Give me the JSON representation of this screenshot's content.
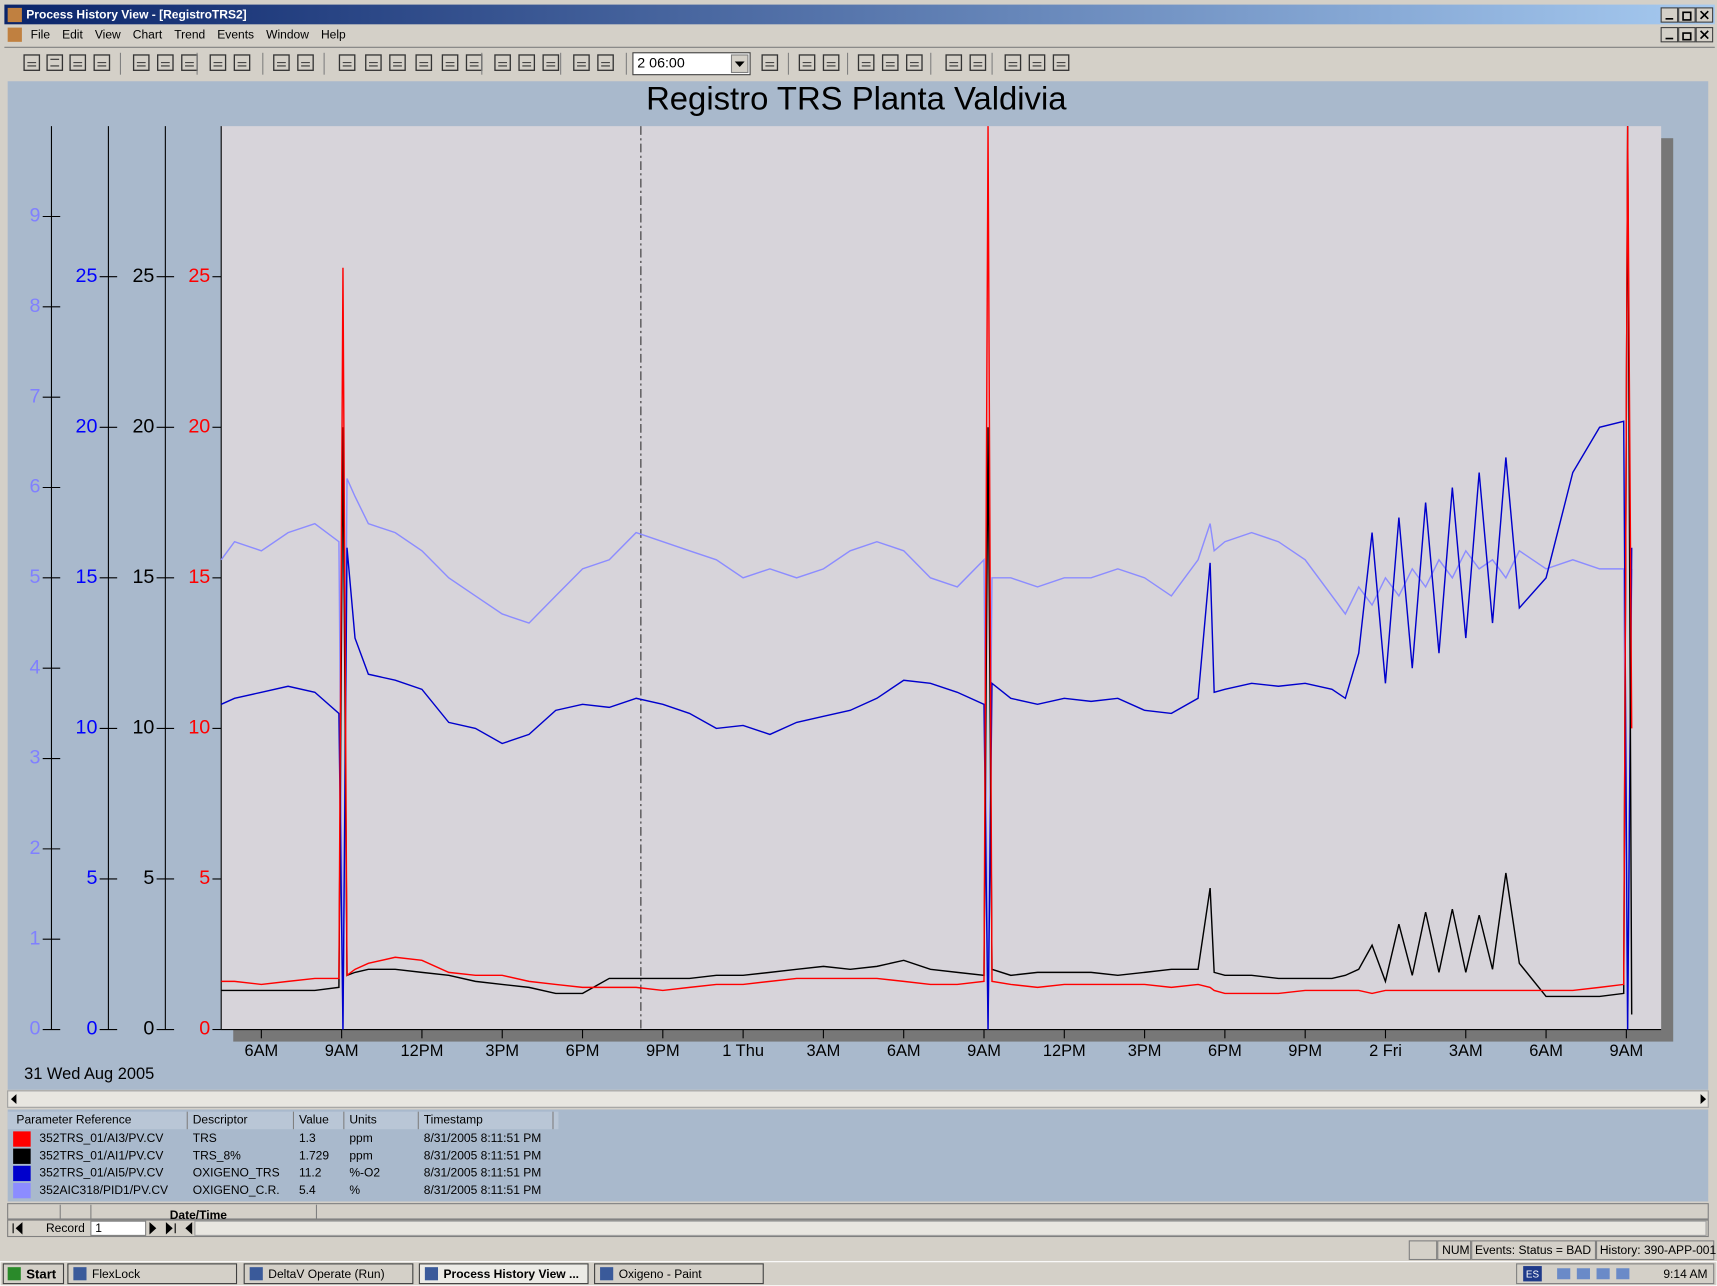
{
  "window": {
    "title": "Process History View - [RegistroTRS2]",
    "menu": [
      "File",
      "Edit",
      "View",
      "Chart",
      "Trend",
      "Events",
      "Window",
      "Help"
    ],
    "timespan": "2 06:00"
  },
  "chart_data": {
    "type": "line",
    "title": "Registro TRS Planta Valdivia",
    "date_label": "31 Wed Aug 2005",
    "x": [
      4.5,
      5,
      6,
      7,
      8,
      8.9,
      9.05,
      9.2,
      9.5,
      10,
      11,
      12,
      13,
      14,
      15,
      16,
      17,
      18,
      19,
      20,
      21,
      22,
      23,
      24,
      25,
      26,
      27,
      28,
      29,
      30,
      31,
      32,
      33,
      33.15,
      33.3,
      34,
      35,
      36,
      37,
      38,
      39,
      40,
      41,
      41.45,
      41.6,
      42,
      43,
      44,
      45,
      46,
      46.5,
      47,
      47.5,
      48,
      48.5,
      49,
      49.5,
      50,
      50.5,
      51,
      51.5,
      52,
      52.5,
      53,
      54,
      55,
      56,
      56.9,
      57.05,
      57.2
    ],
    "xlim": [
      4.5,
      58.3
    ],
    "xticks": [
      {
        "value": 6,
        "label": "6AM"
      },
      {
        "value": 9,
        "label": "9AM"
      },
      {
        "value": 12,
        "label": "12PM"
      },
      {
        "value": 15,
        "label": "3PM"
      },
      {
        "value": 18,
        "label": "6PM"
      },
      {
        "value": 21,
        "label": "9PM"
      },
      {
        "value": 24,
        "label": "1 Thu"
      },
      {
        "value": 27,
        "label": "3AM"
      },
      {
        "value": 30,
        "label": "6AM"
      },
      {
        "value": 33,
        "label": "9AM"
      },
      {
        "value": 36,
        "label": "12PM"
      },
      {
        "value": 39,
        "label": "3PM"
      },
      {
        "value": 42,
        "label": "6PM"
      },
      {
        "value": 45,
        "label": "9PM"
      },
      {
        "value": 48,
        "label": "2 Fri"
      },
      {
        "value": 51,
        "label": "3AM"
      },
      {
        "value": 54,
        "label": "6AM"
      },
      {
        "value": 57,
        "label": "9AM"
      }
    ],
    "cursor_x": 20.18,
    "y_axes": [
      {
        "color": "#8080ff",
        "ylim": [
          0,
          10
        ],
        "yticks": [
          0,
          1,
          2,
          3,
          4,
          5,
          6,
          7,
          8,
          9
        ]
      },
      {
        "color": "#0000ff",
        "ylim": [
          0,
          30
        ],
        "yticks": [
          0,
          5,
          10,
          15,
          20,
          25
        ]
      },
      {
        "color": "#000000",
        "ylim": [
          0,
          30
        ],
        "yticks": [
          0,
          5,
          10,
          15,
          20,
          25
        ]
      },
      {
        "color": "#ff0000",
        "ylim": [
          0,
          30
        ],
        "yticks": [
          0,
          5,
          10,
          15,
          20,
          25
        ]
      }
    ],
    "legend_columns": [
      "Parameter Reference",
      "Descriptor",
      "Value",
      "Units",
      "Timestamp"
    ],
    "series": [
      {
        "name": "352TRS_01/AI3/PV.CV",
        "descriptor": "TRS",
        "current_value": 1.3,
        "units": "ppm",
        "timestamp": "8/31/2005 8:11:51 PM",
        "color": "#ff0000",
        "axis": 3,
        "values": [
          1.6,
          1.6,
          1.5,
          1.6,
          1.7,
          1.7,
          25.3,
          1.8,
          2.0,
          2.2,
          2.4,
          2.3,
          1.9,
          1.8,
          1.8,
          1.6,
          1.5,
          1.4,
          1.4,
          1.4,
          1.3,
          1.4,
          1.5,
          1.5,
          1.6,
          1.7,
          1.7,
          1.7,
          1.7,
          1.6,
          1.5,
          1.5,
          1.6,
          30,
          1.6,
          1.5,
          1.4,
          1.5,
          1.5,
          1.5,
          1.5,
          1.4,
          1.5,
          1.4,
          1.3,
          1.2,
          1.2,
          1.2,
          1.3,
          1.3,
          1.3,
          1.3,
          1.2,
          1.3,
          1.3,
          1.3,
          1.3,
          1.3,
          1.3,
          1.3,
          1.3,
          1.3,
          1.3,
          1.3,
          1.3,
          1.3,
          1.4,
          1.5,
          30,
          10
        ]
      },
      {
        "name": "352TRS_01/AI1/PV.CV",
        "descriptor": "TRS_8%",
        "current_value": 1.729,
        "units": "ppm",
        "timestamp": "8/31/2005 8:11:51 PM",
        "color": "#000000",
        "axis": 2,
        "values": [
          1.3,
          1.3,
          1.3,
          1.3,
          1.3,
          1.4,
          20,
          1.8,
          1.9,
          2.0,
          2.0,
          1.9,
          1.8,
          1.6,
          1.5,
          1.4,
          1.2,
          1.2,
          1.7,
          1.7,
          1.7,
          1.7,
          1.8,
          1.8,
          1.9,
          2.0,
          2.1,
          2.0,
          2.1,
          2.3,
          2.0,
          1.9,
          1.8,
          20,
          2.0,
          1.8,
          1.9,
          1.9,
          1.9,
          1.8,
          1.9,
          2.0,
          2.0,
          4.7,
          1.9,
          1.8,
          1.8,
          1.7,
          1.7,
          1.7,
          1.8,
          2.0,
          2.8,
          1.6,
          3.5,
          1.8,
          3.9,
          1.9,
          4.0,
          1.9,
          3.8,
          2.0,
          5.2,
          2.2,
          1.1,
          1.1,
          1.1,
          1.2,
          30,
          0.5
        ]
      },
      {
        "name": "352TRS_01/AI5/PV.CV",
        "descriptor": "OXIGENO_TRS",
        "current_value": 11.2,
        "units": "%-O2",
        "timestamp": "8/31/2005 8:11:51 PM",
        "color": "#0000cc",
        "axis": 1,
        "values": [
          10.8,
          11.0,
          11.2,
          11.4,
          11.2,
          10.5,
          0,
          16,
          13,
          11.8,
          11.6,
          11.3,
          10.2,
          10.0,
          9.5,
          9.8,
          10.6,
          10.8,
          10.7,
          11.0,
          10.8,
          10.5,
          10.0,
          10.1,
          9.8,
          10.2,
          10.4,
          10.6,
          11.0,
          11.6,
          11.5,
          11.2,
          10.8,
          0,
          11.5,
          11,
          10.8,
          11,
          10.9,
          11.0,
          10.6,
          10.5,
          11.0,
          15.5,
          11.2,
          11.3,
          11.5,
          11.4,
          11.5,
          11.3,
          11.0,
          12.5,
          16.5,
          11.5,
          17,
          12,
          17.5,
          12.5,
          18,
          13,
          18.5,
          13.5,
          19,
          14,
          15,
          18.5,
          20,
          20.2,
          0,
          16
        ]
      },
      {
        "name": "352AIC318/PID1/PV.CV",
        "descriptor": "OXIGENO_C.R.",
        "current_value": 5.4,
        "units": "%",
        "timestamp": "8/31/2005 8:11:51 PM",
        "color": "#8c8cff",
        "axis": 0,
        "values": [
          5.2,
          5.4,
          5.3,
          5.5,
          5.6,
          5.4,
          0,
          6.1,
          5.9,
          5.6,
          5.5,
          5.3,
          5.0,
          4.8,
          4.6,
          4.5,
          4.8,
          5.1,
          5.2,
          5.5,
          5.4,
          5.3,
          5.2,
          5.0,
          5.1,
          5.0,
          5.1,
          5.3,
          5.4,
          5.3,
          5.0,
          4.9,
          5.2,
          0,
          5.0,
          5.0,
          4.9,
          5.0,
          5.0,
          5.1,
          5.0,
          4.8,
          5.2,
          5.6,
          5.3,
          5.4,
          5.5,
          5.4,
          5.2,
          4.8,
          4.6,
          4.9,
          4.7,
          5.0,
          4.8,
          5.1,
          4.9,
          5.2,
          5.0,
          5.3,
          5.1,
          5.2,
          5.0,
          5.3,
          5.1,
          5.2,
          5.1,
          5.1,
          0,
          5.1
        ]
      }
    ]
  },
  "record_bar": {
    "column": "Date/Time",
    "label": "Record",
    "value": 1
  },
  "status_bar": [
    "NUM",
    "Events:  Status = BAD",
    "History: 390-APP-001"
  ],
  "taskbar": {
    "start": "Start",
    "items": [
      "FlexLock",
      "DeltaV Operate (Run)",
      "Process History View ...",
      "Oxigeno - Paint"
    ],
    "language": "ES",
    "clock": "9:14 AM"
  }
}
